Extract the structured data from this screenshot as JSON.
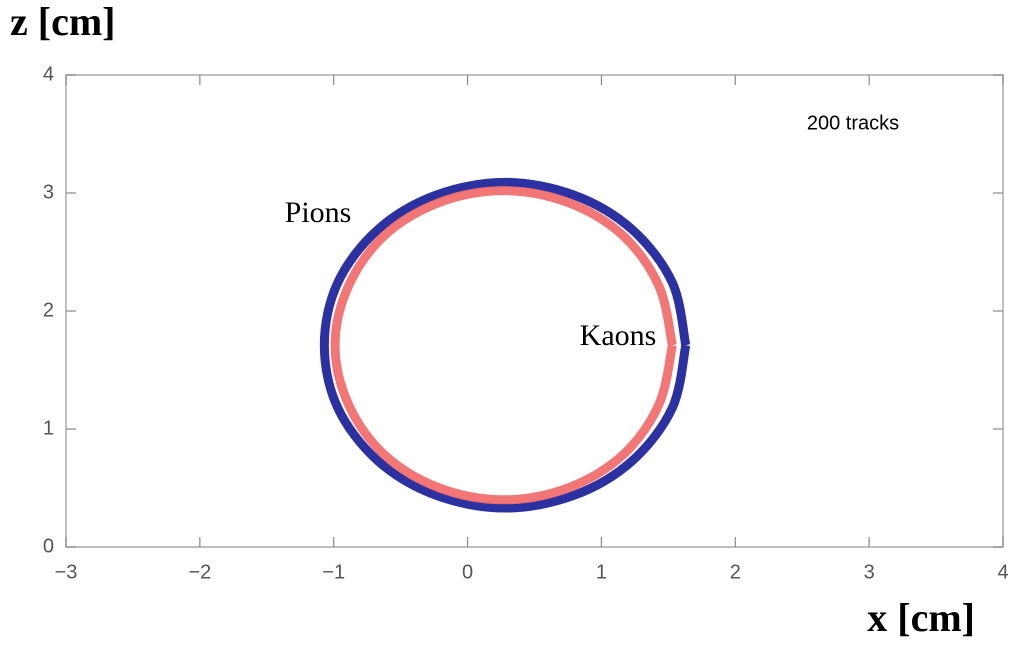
{
  "chart_data": {
    "type": "line",
    "xlabel": "x [cm]",
    "ylabel": "z [cm]",
    "annotation": "200 tracks",
    "xlim": [
      -3,
      4
    ],
    "ylim": [
      0,
      4
    ],
    "xticks": [
      {
        "value": -3,
        "label": "−3"
      },
      {
        "value": -2,
        "label": "−2"
      },
      {
        "value": -1,
        "label": "−1"
      },
      0,
      1,
      2,
      3,
      4
    ],
    "yticks": [
      0,
      1,
      2,
      3,
      4
    ],
    "grid": false,
    "series": [
      {
        "name": "Pions",
        "color": "#1a1f9a",
        "x": [
          1.63,
          1.53,
          1.23,
          0.8,
          0.28,
          -0.24,
          -0.67,
          -0.97,
          -1.07,
          -0.97,
          -0.67,
          -0.24,
          0.28,
          0.8,
          1.23,
          1.53,
          1.63
        ],
        "values": [
          1.71,
          2.24,
          2.69,
          2.98,
          3.09,
          2.98,
          2.69,
          2.24,
          1.71,
          1.18,
          0.73,
          0.44,
          0.33,
          0.44,
          0.73,
          1.18,
          1.71
        ]
      },
      {
        "name": "Kaons",
        "color": "#f26a6a",
        "x": [
          1.53,
          1.43,
          1.16,
          0.75,
          0.27,
          -0.21,
          -0.62,
          -0.89,
          -0.99,
          -0.89,
          -0.62,
          -0.21,
          0.27,
          0.75,
          1.16,
          1.43,
          1.53
        ],
        "values": [
          1.71,
          2.21,
          2.64,
          2.92,
          3.02,
          2.92,
          2.64,
          2.21,
          1.71,
          1.21,
          0.78,
          0.5,
          0.4,
          0.5,
          0.78,
          1.21,
          1.71
        ]
      }
    ]
  }
}
